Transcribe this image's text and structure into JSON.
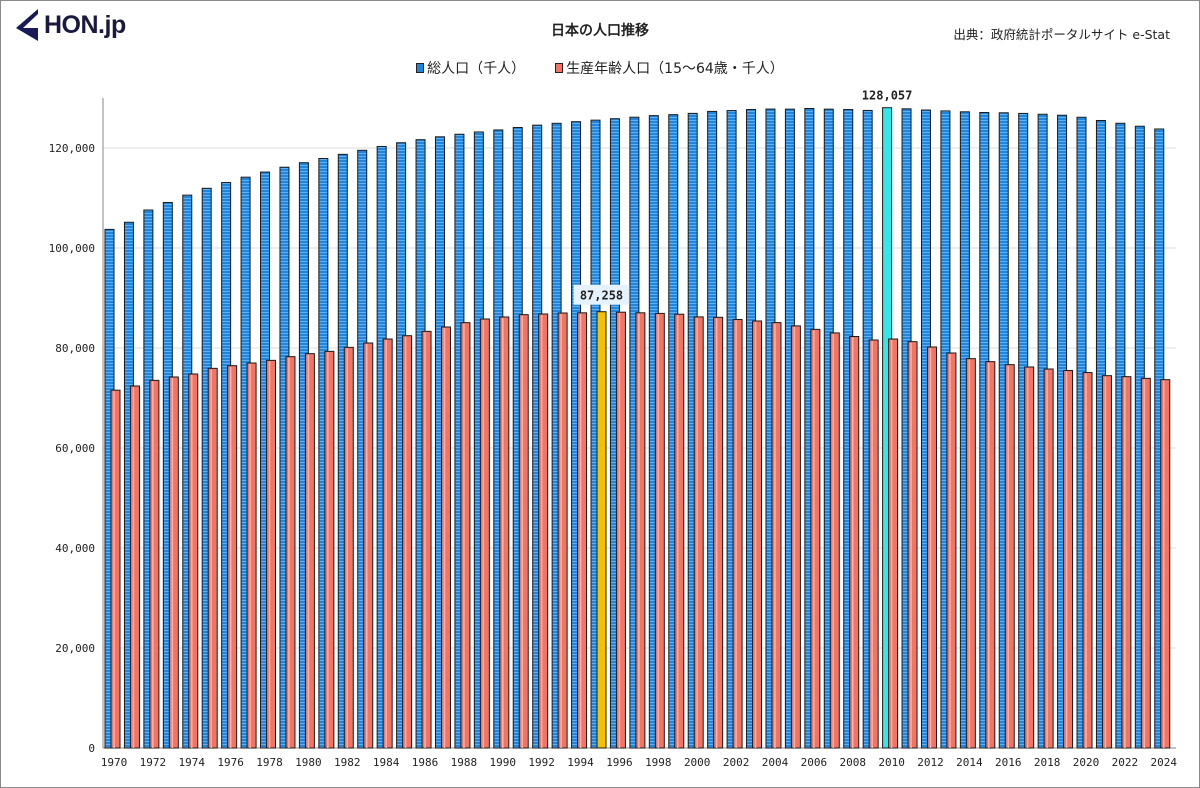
{
  "logo": {
    "text": "HON.jp"
  },
  "header": {
    "title": "日本の人口推移",
    "source": "出典：政府統計ポータルサイト e-Stat"
  },
  "colors": {
    "total": "#1f86e0",
    "working": "#f07565",
    "highlight_total": "#33e8e8",
    "highlight_working": "#f5c000"
  },
  "chart_data": {
    "type": "bar",
    "title": "日本の人口推移",
    "xlabel": "",
    "ylabel": "",
    "ylim": [
      0,
      130000
    ],
    "yticks": [
      "0",
      "20,000",
      "40,000",
      "60,000",
      "80,000",
      "100,000",
      "120,000"
    ],
    "grid": true,
    "legend_position": "top-center",
    "categories": [
      1970,
      1971,
      1972,
      1973,
      1974,
      1975,
      1976,
      1977,
      1978,
      1979,
      1980,
      1981,
      1982,
      1983,
      1984,
      1985,
      1986,
      1987,
      1988,
      1989,
      1990,
      1991,
      1992,
      1993,
      1994,
      1995,
      1996,
      1997,
      1998,
      1999,
      2000,
      2001,
      2002,
      2003,
      2004,
      2005,
      2006,
      2007,
      2008,
      2009,
      2010,
      2011,
      2012,
      2013,
      2014,
      2015,
      2016,
      2017,
      2018,
      2019,
      2020,
      2021,
      2022,
      2023,
      2024
    ],
    "series": [
      {
        "name": "総人口（千人）",
        "highlight": {
          "year": 2010,
          "label": "128,057"
        },
        "values": [
          103720,
          105145,
          107595,
          109104,
          110573,
          111940,
          113094,
          114165,
          115190,
          116155,
          117060,
          117902,
          118728,
          119536,
          120305,
          121049,
          121660,
          122239,
          122745,
          123205,
          123611,
          124101,
          124567,
          124938,
          125265,
          125570,
          125859,
          126157,
          126472,
          126667,
          126926,
          127316,
          127486,
          127694,
          127787,
          127768,
          127901,
          127771,
          127692,
          127510,
          128057,
          127834,
          127593,
          127414,
          127237,
          127095,
          127042,
          126919,
          126749,
          126555,
          126146,
          125502,
          124947,
          124352,
          123802
        ]
      },
      {
        "name": "生産年齢人口（15～64歳・千人）",
        "highlight": {
          "year": 1995,
          "label": "87,258"
        },
        "values": [
          71566,
          72400,
          73530,
          74200,
          74800,
          75930,
          76460,
          77000,
          77530,
          78270,
          78870,
          79330,
          80130,
          81000,
          81800,
          82460,
          83330,
          84200,
          85070,
          85800,
          86200,
          86670,
          86800,
          87000,
          87034,
          87258,
          87161,
          87042,
          86920,
          86758,
          86220,
          86139,
          85706,
          85404,
          85077,
          84422,
          83731,
          83015,
          82300,
          81600,
          81800,
          81270,
          80200,
          79000,
          77870,
          77270,
          76670,
          76200,
          75800,
          75500,
          75088,
          74470,
          74270,
          73930,
          73670
        ]
      }
    ]
  }
}
